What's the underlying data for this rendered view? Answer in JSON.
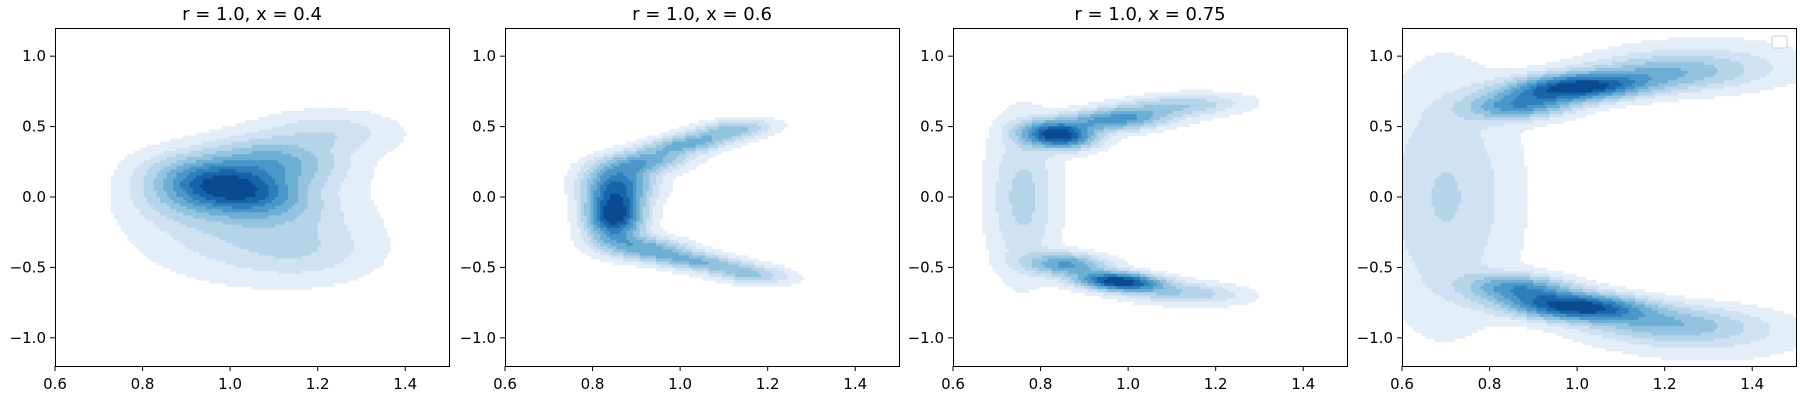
{
  "chart_data": [
    {
      "type": "kde-contour",
      "title": "r = 1.0, x = 0.4",
      "xlim": [
        0.6,
        1.5
      ],
      "ylim": [
        -1.2,
        1.2
      ],
      "xticks": [
        0.6,
        0.8,
        1.0,
        1.2,
        1.4
      ],
      "yticks": [
        -1.0,
        -0.5,
        0.0,
        0.5,
        1.0
      ],
      "xtick_labels": [
        "0.6",
        "0.8",
        "1.0",
        "1.2",
        "1.4"
      ],
      "ytick_labels": [
        "−1.0",
        "−0.5",
        "0.0",
        "0.5",
        "1.0"
      ],
      "colormap": "Blues",
      "legend": false,
      "density_components": [
        {
          "cx": 1.0,
          "cy": 0.07,
          "sx": 0.085,
          "sy": 0.13,
          "rot": 28,
          "w": 1.0
        },
        {
          "cx": 1.1,
          "cy": 0.25,
          "sx": 0.09,
          "sy": 0.11,
          "rot": 30,
          "w": 0.45
        },
        {
          "cx": 1.22,
          "cy": 0.45,
          "sx": 0.1,
          "sy": 0.1,
          "rot": 30,
          "w": 0.18
        },
        {
          "cx": 1.05,
          "cy": -0.2,
          "sx": 0.15,
          "sy": 0.22,
          "rot": 0,
          "w": 0.22
        },
        {
          "cx": 1.18,
          "cy": -0.4,
          "sx": 0.1,
          "sy": 0.13,
          "rot": 0,
          "w": 0.1
        },
        {
          "cx": 0.9,
          "cy": 0.0,
          "sx": 0.08,
          "sy": 0.12,
          "rot": 0,
          "w": 0.2
        }
      ]
    },
    {
      "type": "kde-contour",
      "title": "r = 1.0, x = 0.6",
      "xlim": [
        0.6,
        1.5
      ],
      "ylim": [
        -1.2,
        1.2
      ],
      "xticks": [
        0.6,
        0.8,
        1.0,
        1.2,
        1.4
      ],
      "yticks": [
        -1.0,
        -0.5,
        0.0,
        0.5,
        1.0
      ],
      "xtick_labels": [
        "0.6",
        "0.8",
        "1.0",
        "1.2",
        "1.4"
      ],
      "ytick_labels": [
        "−1.0",
        "−0.5",
        "0.0",
        "0.5",
        "1.0"
      ],
      "colormap": "Blues",
      "legend": false,
      "density_components": [
        {
          "cx": 0.85,
          "cy": -0.12,
          "sx": 0.04,
          "sy": 0.12,
          "rot": 0,
          "w": 1.0
        },
        {
          "cx": 0.86,
          "cy": 0.1,
          "sx": 0.05,
          "sy": 0.09,
          "rot": 0,
          "w": 0.55
        },
        {
          "cx": 0.92,
          "cy": 0.25,
          "sx": 0.07,
          "sy": 0.05,
          "rot": 40,
          "w": 0.4
        },
        {
          "cx": 1.02,
          "cy": 0.38,
          "sx": 0.07,
          "sy": 0.04,
          "rot": 30,
          "w": 0.4
        },
        {
          "cx": 1.12,
          "cy": 0.48,
          "sx": 0.06,
          "sy": 0.04,
          "rot": 25,
          "w": 0.3
        },
        {
          "cx": 0.92,
          "cy": -0.36,
          "sx": 0.07,
          "sy": 0.05,
          "rot": -35,
          "w": 0.4
        },
        {
          "cx": 1.04,
          "cy": -0.46,
          "sx": 0.08,
          "sy": 0.04,
          "rot": -25,
          "w": 0.35
        },
        {
          "cx": 1.16,
          "cy": -0.55,
          "sx": 0.06,
          "sy": 0.04,
          "rot": -20,
          "w": 0.25
        }
      ]
    },
    {
      "type": "kde-contour",
      "title": "r = 1.0, x = 0.75",
      "xlim": [
        0.6,
        1.5
      ],
      "ylim": [
        -1.2,
        1.2
      ],
      "xticks": [
        0.6,
        0.8,
        1.0,
        1.2,
        1.4
      ],
      "yticks": [
        -1.0,
        -0.5,
        0.0,
        0.5,
        1.0
      ],
      "xtick_labels": [
        "0.6",
        "0.8",
        "1.0",
        "1.2",
        "1.4"
      ],
      "ytick_labels": [
        "−1.0",
        "−0.5",
        "0.0",
        "0.5",
        "1.0"
      ],
      "colormap": "Blues",
      "legend": false,
      "density_components": [
        {
          "cx": 0.84,
          "cy": 0.44,
          "sx": 0.05,
          "sy": 0.06,
          "rot": 20,
          "w": 1.0
        },
        {
          "cx": 0.97,
          "cy": 0.55,
          "sx": 0.08,
          "sy": 0.05,
          "rot": 15,
          "w": 0.55
        },
        {
          "cx": 1.12,
          "cy": 0.65,
          "sx": 0.09,
          "sy": 0.05,
          "rot": 10,
          "w": 0.25
        },
        {
          "cx": 0.98,
          "cy": -0.6,
          "sx": 0.06,
          "sy": 0.04,
          "rot": -15,
          "w": 1.0
        },
        {
          "cx": 0.86,
          "cy": -0.48,
          "sx": 0.06,
          "sy": 0.05,
          "rot": -25,
          "w": 0.5
        },
        {
          "cx": 1.12,
          "cy": -0.68,
          "sx": 0.09,
          "sy": 0.05,
          "rot": -10,
          "w": 0.25
        },
        {
          "cx": 0.76,
          "cy": 0.0,
          "sx": 0.05,
          "sy": 0.35,
          "rot": 0,
          "w": 0.2
        }
      ]
    },
    {
      "type": "kde-contour",
      "title": "",
      "xlim": [
        0.6,
        1.5
      ],
      "ylim": [
        -1.2,
        1.2
      ],
      "xticks": [
        0.6,
        0.8,
        1.0,
        1.2,
        1.4
      ],
      "yticks": [
        -1.0,
        -0.5,
        0.0,
        0.5,
        1.0
      ],
      "xtick_labels": [
        "0.6",
        "0.8",
        "1.0",
        "1.2",
        "1.4"
      ],
      "ytick_labels": [
        "−1.0",
        "−0.5",
        "0.0",
        "0.5",
        "1.0"
      ],
      "colormap": "Blues",
      "legend": true,
      "legend_position": "top-right",
      "density_components": [
        {
          "cx": 1.0,
          "cy": 0.78,
          "sx": 0.1,
          "sy": 0.06,
          "rot": 12,
          "w": 1.0
        },
        {
          "cx": 0.87,
          "cy": 0.65,
          "sx": 0.08,
          "sy": 0.06,
          "rot": 20,
          "w": 0.55
        },
        {
          "cx": 1.2,
          "cy": 0.88,
          "sx": 0.12,
          "sy": 0.08,
          "rot": 5,
          "w": 0.3
        },
        {
          "cx": 1.0,
          "cy": -0.78,
          "sx": 0.1,
          "sy": 0.06,
          "rot": -12,
          "w": 1.0
        },
        {
          "cx": 0.87,
          "cy": -0.65,
          "sx": 0.08,
          "sy": 0.06,
          "rot": -20,
          "w": 0.55
        },
        {
          "cx": 1.2,
          "cy": -0.9,
          "sx": 0.12,
          "sy": 0.08,
          "rot": -5,
          "w": 0.3
        },
        {
          "cx": 0.7,
          "cy": 0.0,
          "sx": 0.1,
          "sy": 0.55,
          "rot": 0,
          "w": 0.18
        },
        {
          "cx": 1.3,
          "cy": 0.95,
          "sx": 0.15,
          "sy": 0.12,
          "rot": 0,
          "w": 0.1
        },
        {
          "cx": 1.3,
          "cy": -0.98,
          "sx": 0.15,
          "sy": 0.12,
          "rot": 0,
          "w": 0.1
        }
      ]
    }
  ],
  "colors": {
    "levels": [
      "#f7fbff",
      "#e3eef9",
      "#cfe1f2",
      "#b5d4e9",
      "#93c3df",
      "#6daed5",
      "#4b97c9",
      "#2f7ebc",
      "#1864aa",
      "#0a4a90"
    ]
  }
}
